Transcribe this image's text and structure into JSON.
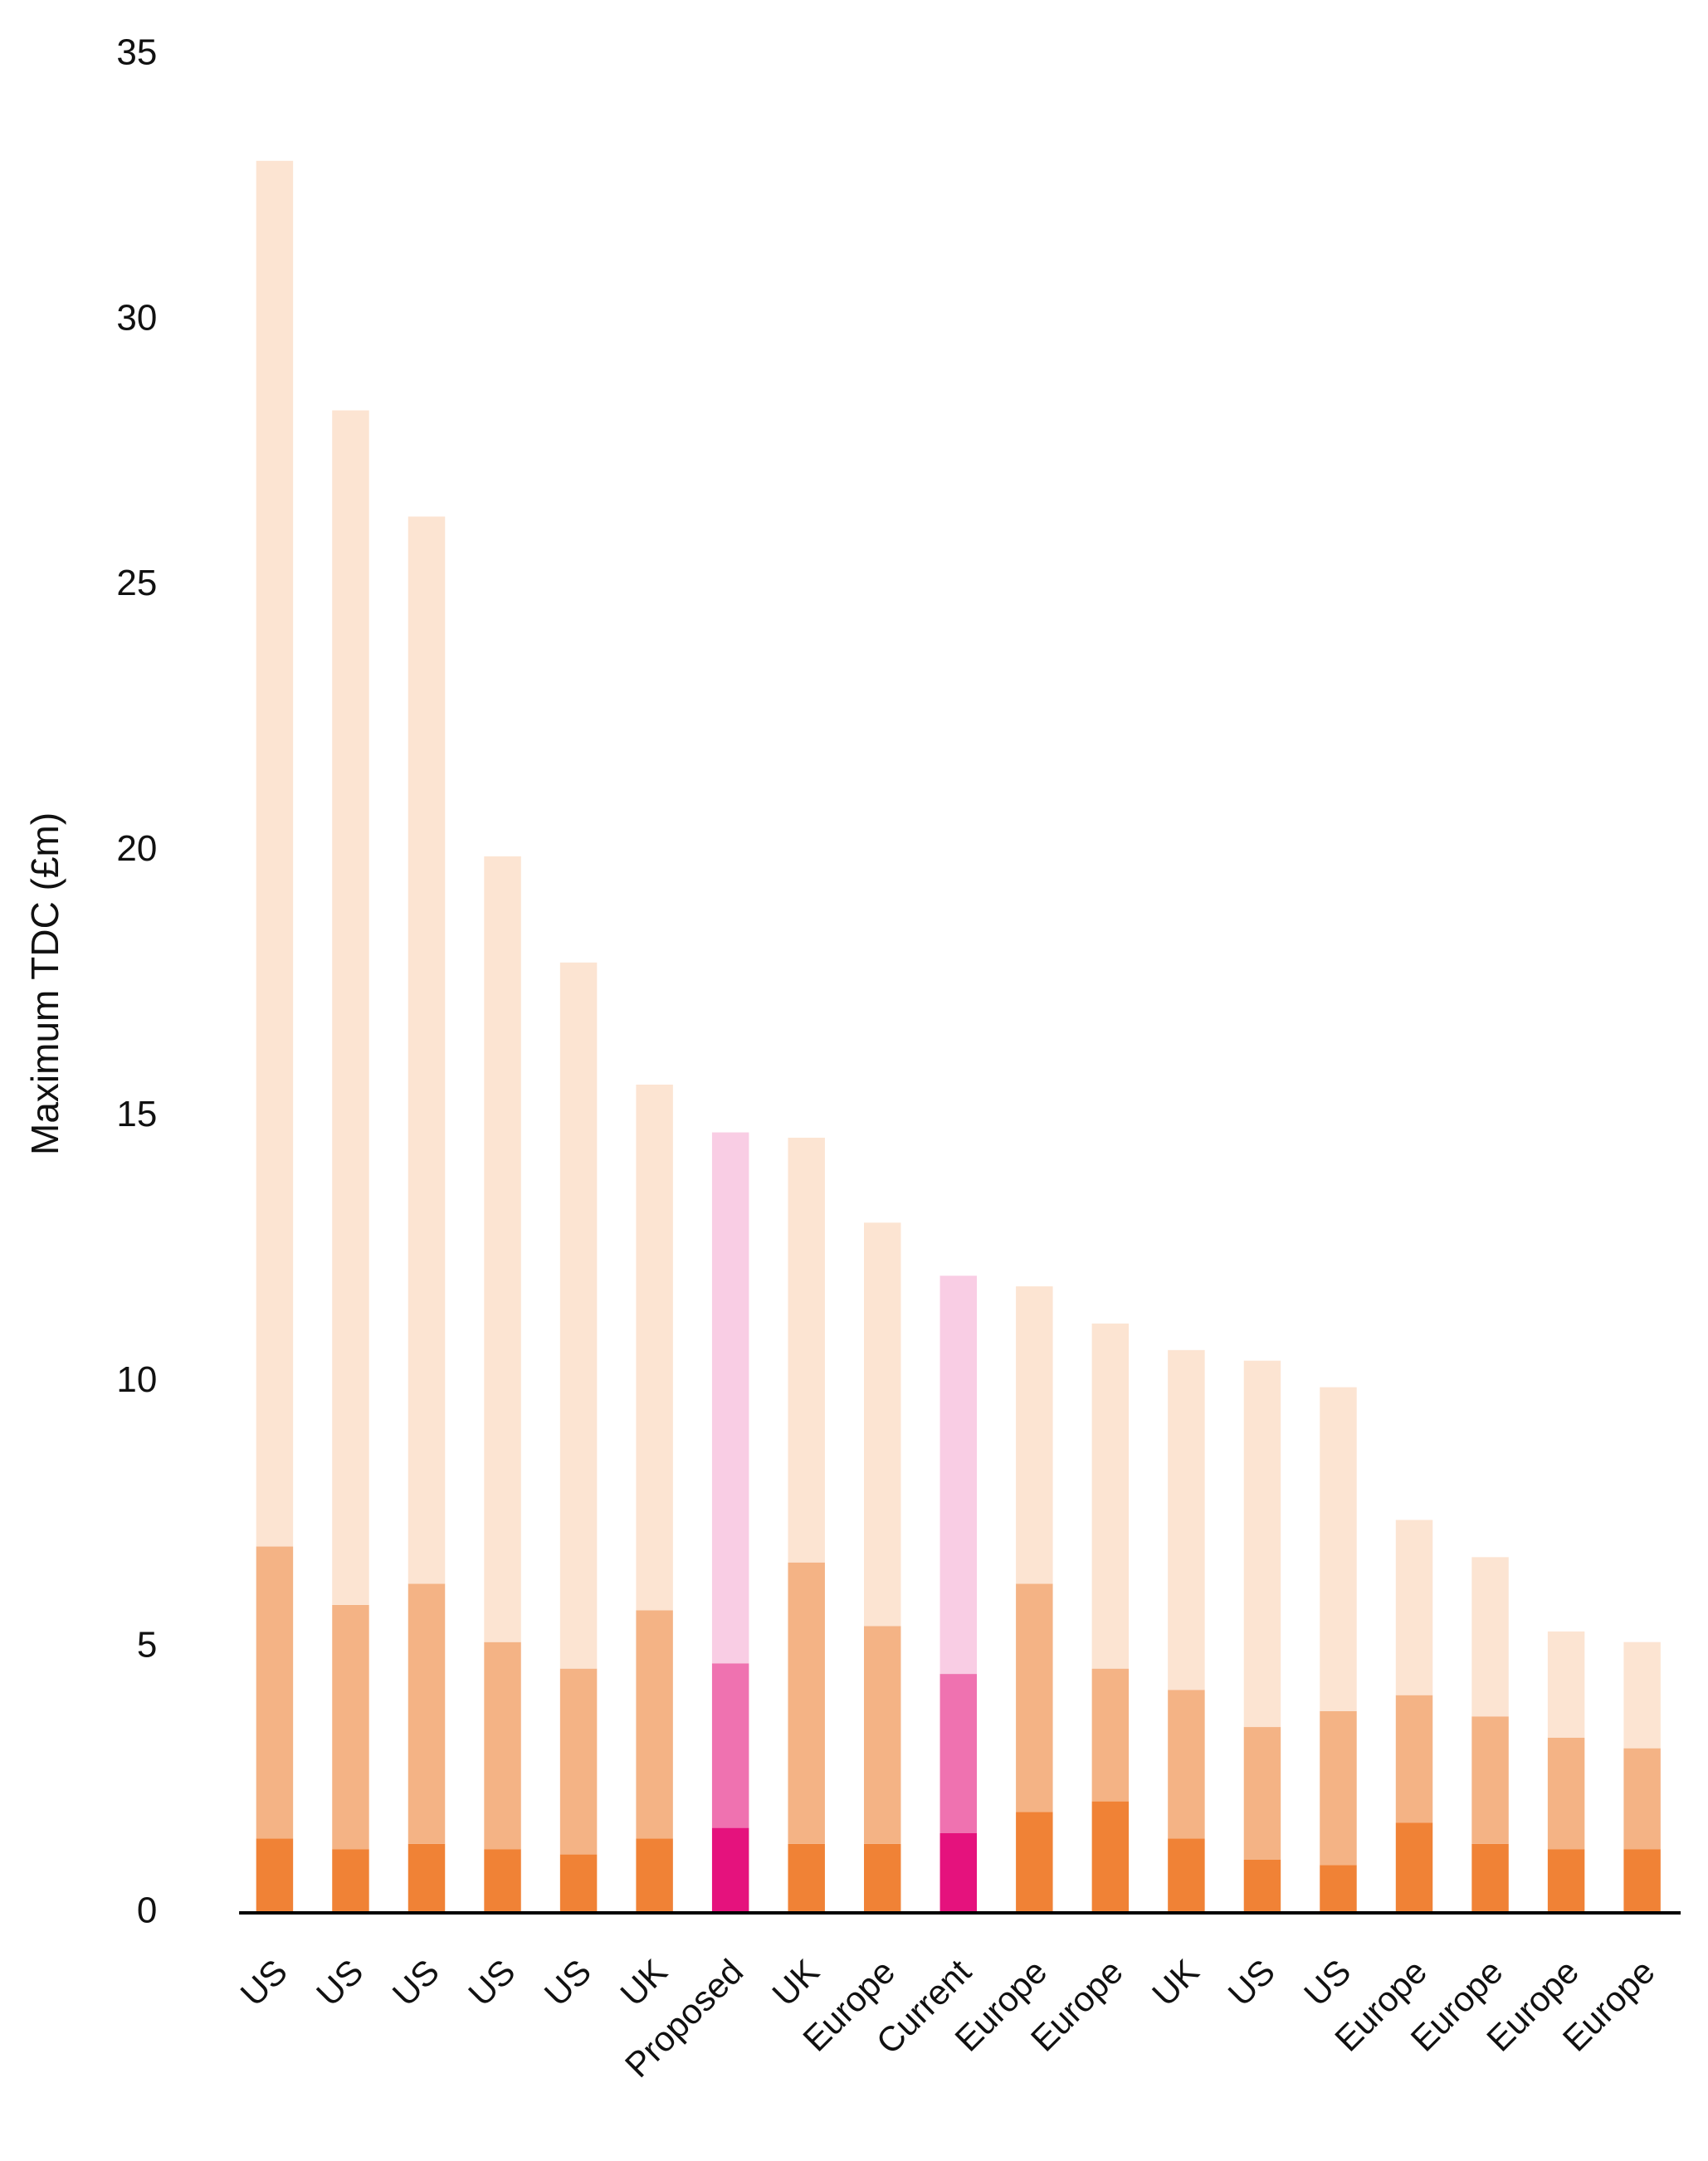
{
  "chart_data": {
    "type": "stacked_bar",
    "y_label": "Maximum TDC (£m)",
    "categories": [
      "US",
      "US",
      "US",
      "US",
      "US",
      "UK",
      "Proposed",
      "UK",
      "Europe",
      "Current",
      "Europe",
      "Europe",
      "UK",
      "US",
      "US",
      "Europe",
      "Europe",
      "Europe",
      "Europe"
    ],
    "series": [
      {
        "colors": [
          "#f08236",
          "#f08236",
          "#f08236",
          "#f08236",
          "#f08236",
          "#f08236",
          "#e5127d",
          "#f08236",
          "#f08236",
          "#e5127d",
          "#f08236",
          "#f08236",
          "#f08236",
          "#f08236",
          "#f08236",
          "#f08236",
          "#f08236",
          "#f08236",
          "#f08236"
        ],
        "values": [
          1.4,
          1.2,
          1.3,
          1.2,
          1.1,
          1.4,
          1.6,
          1.3,
          1.3,
          1.5,
          1.9,
          2.1,
          1.4,
          1.0,
          0.9,
          1.7,
          1.3,
          1.2,
          1.2
        ]
      },
      {
        "colors": [
          "#f4b385",
          "#f4b385",
          "#f4b385",
          "#f4b385",
          "#f4b385",
          "#f4b385",
          "#ef72b0",
          "#f4b385",
          "#f4b385",
          "#ef72b0",
          "#f4b385",
          "#f4b385",
          "#f4b385",
          "#f4b385",
          "#f4b385",
          "#f4b385",
          "#f4b385",
          "#f4b385",
          "#f4b385"
        ],
        "values": [
          5.5,
          4.6,
          4.9,
          3.9,
          3.5,
          4.3,
          3.1,
          5.3,
          4.1,
          3.0,
          4.3,
          2.5,
          2.8,
          2.5,
          2.9,
          2.4,
          2.4,
          2.1,
          1.9
        ]
      },
      {
        "colors": [
          "#fce4d2",
          "#fce4d2",
          "#fce4d2",
          "#fce4d2",
          "#fce4d2",
          "#fce4d2",
          "#f9cde4",
          "#fce4d2",
          "#fce4d2",
          "#f9cde4",
          "#fce4d2",
          "#fce4d2",
          "#fce4d2",
          "#fce4d2",
          "#fce4d2",
          "#fce4d2",
          "#fce4d2",
          "#fce4d2",
          "#fce4d2"
        ],
        "values": [
          26.1,
          22.5,
          20.1,
          14.8,
          13.3,
          9.9,
          10.0,
          8.0,
          7.6,
          7.5,
          5.6,
          6.5,
          6.4,
          6.9,
          6.1,
          3.3,
          3.0,
          2.0,
          2.0
        ]
      }
    ],
    "ylim": [
      0,
      35
    ],
    "yticks": [
      0,
      5,
      10,
      15,
      20,
      25,
      30,
      35
    ],
    "grid": false
  }
}
